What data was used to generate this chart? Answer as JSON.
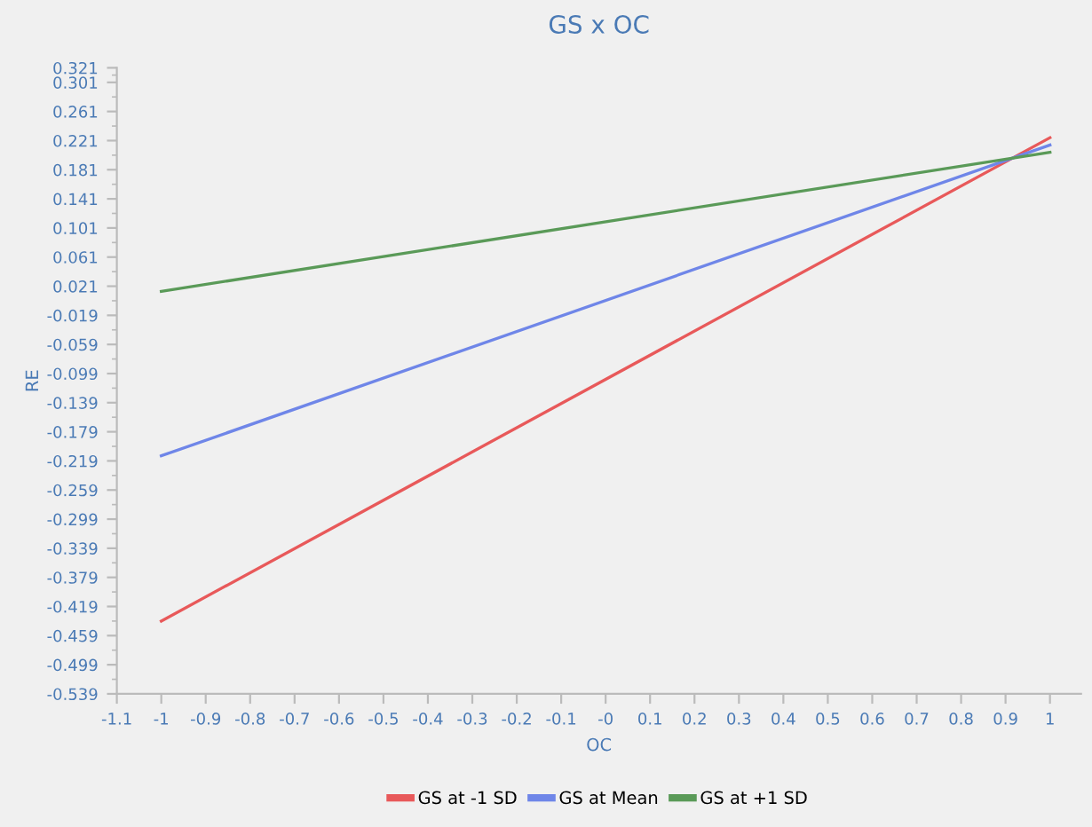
{
  "chart_data": {
    "type": "line",
    "title": "GS x OC",
    "xlabel": "OC",
    "ylabel": "RE",
    "x": [
      -1,
      1
    ],
    "series": [
      {
        "name": "GS at -1 SD",
        "color": "#e8595a",
        "values": [
          -0.439,
          0.225
        ]
      },
      {
        "name": "GS at Mean",
        "color": "#6f86e8",
        "values": [
          -0.212,
          0.215
        ]
      },
      {
        "name": "GS at +1 SD",
        "color": "#5a9a58",
        "values": [
          0.014,
          0.205
        ]
      }
    ],
    "xlim": [
      -1.1,
      1.07
    ],
    "xticks": [
      -1.1,
      -1,
      -0.9,
      -0.8,
      -0.7,
      -0.6,
      -0.5,
      -0.4,
      -0.3,
      -0.2,
      -0.1,
      {
        "value": 0,
        "label": "-0"
      },
      0.1,
      0.2,
      0.3,
      0.4,
      0.5,
      0.6,
      0.7,
      0.8,
      0.9,
      1
    ],
    "ylim": [
      -0.539,
      0.321
    ],
    "yticks": [
      -0.539,
      -0.499,
      -0.459,
      -0.419,
      -0.379,
      -0.339,
      -0.299,
      -0.259,
      -0.219,
      -0.179,
      -0.139,
      -0.099,
      -0.059,
      -0.019,
      0.021,
      0.061,
      0.101,
      0.141,
      0.181,
      0.221,
      0.261,
      0.301,
      0.321
    ],
    "grid": false,
    "legend": "bottom",
    "marker": "none",
    "line_style": "solid"
  }
}
